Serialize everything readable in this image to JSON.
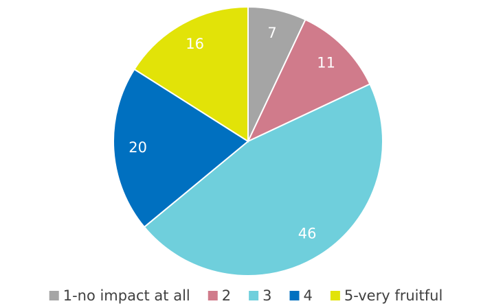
{
  "chart_data": {
    "type": "pie",
    "categories": [
      "1-no impact at all",
      "2",
      "3",
      "4",
      "5-very fruitful"
    ],
    "values": [
      7,
      11,
      46,
      20,
      16
    ],
    "colors": [
      "#a5a5a5",
      "#d07b8b",
      "#6fcfdc",
      "#0070c0",
      "#e2e308"
    ],
    "legend": "bottom"
  }
}
